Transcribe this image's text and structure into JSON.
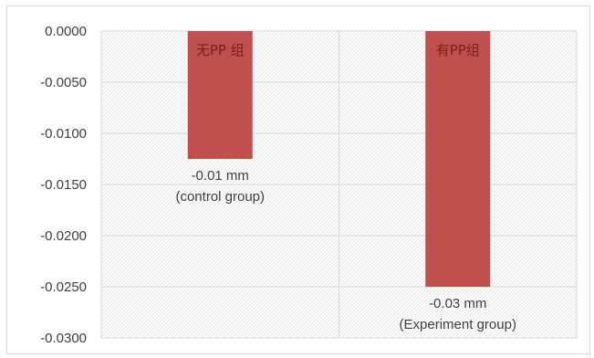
{
  "chart_data": {
    "type": "bar",
    "title": "",
    "xlabel": "",
    "ylabel": "",
    "categories": [
      "无PP 组",
      "有PP组"
    ],
    "values": [
      -0.0125,
      -0.025
    ],
    "data_labels": [
      [
        "-0.01 mm",
        "(control group)"
      ],
      [
        "-0.03 mm",
        "(Experiment group)"
      ]
    ],
    "ylim": [
      -0.03,
      0
    ],
    "yticks": [
      "0.0000",
      "-0.0050",
      "-0.0100",
      "-0.0150",
      "-0.0200",
      "-0.0250",
      "-0.0300"
    ],
    "ytick_values": [
      0,
      -0.005,
      -0.01,
      -0.015,
      -0.02,
      -0.025,
      -0.03
    ],
    "bar_color": "#c0504d",
    "category_label_color": "#7a1f1c",
    "grid": true,
    "legend": "none",
    "plot_background": "hatched"
  }
}
